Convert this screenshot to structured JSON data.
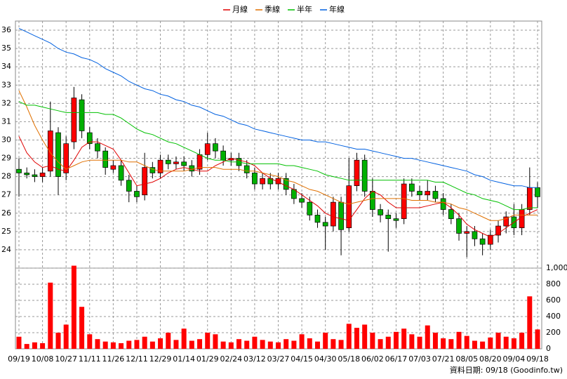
{
  "chart_data": {
    "type": "candlestick",
    "categories": [
      "09/19",
      null,
      null,
      "10/08",
      null,
      null,
      "10/27",
      null,
      null,
      "11/11",
      null,
      null,
      "11/26",
      null,
      null,
      "12/11",
      null,
      null,
      "12/29",
      null,
      null,
      "01/14",
      null,
      null,
      "01/29",
      null,
      null,
      "02/24",
      null,
      null,
      "03/12",
      null,
      null,
      "03/27",
      null,
      null,
      "04/15",
      null,
      null,
      "04/30",
      null,
      null,
      "05/18",
      null,
      null,
      "06/02",
      null,
      null,
      "06/17",
      null,
      null,
      "07/03",
      null,
      null,
      "07/21",
      null,
      null,
      "08/05",
      null,
      null,
      "08/20",
      null,
      null,
      "09/04",
      null,
      null,
      "09/18"
    ],
    "open": [
      28.4,
      28.2,
      28.1,
      28.0,
      28.3,
      30.4,
      28.2,
      29.9,
      32.2,
      30.4,
      29.8,
      29.4,
      28.4,
      28.6,
      27.8,
      27.2,
      27.0,
      28.5,
      28.2,
      28.9,
      28.7,
      28.8,
      28.6,
      28.4,
      29.2,
      29.8,
      29.4,
      28.9,
      29.0,
      28.6,
      28.2,
      27.6,
      27.9,
      27.6,
      27.9,
      27.3,
      26.8,
      26.6,
      25.9,
      25.5,
      25.3,
      26.6,
      25.2,
      27.5,
      28.9,
      27.2,
      26.2,
      25.9,
      25.7,
      25.7,
      27.6,
      27.2,
      27.0,
      27.2,
      26.8,
      26.2,
      25.7,
      24.9,
      25.0,
      24.6,
      24.3,
      24.8,
      25.3,
      25.8,
      25.2,
      26.2,
      27.4
    ],
    "high": [
      29.0,
      28.5,
      28.4,
      28.5,
      32.1,
      30.7,
      30.2,
      32.9,
      32.5,
      30.7,
      30.1,
      29.6,
      28.9,
      28.9,
      28.1,
      27.5,
      29.3,
      28.8,
      29.2,
      29.2,
      29.1,
      29.1,
      28.9,
      29.5,
      30.4,
      30.1,
      29.7,
      29.3,
      29.3,
      28.9,
      28.5,
      28.2,
      28.2,
      28.2,
      28.2,
      27.6,
      27.1,
      26.9,
      26.2,
      25.8,
      26.9,
      26.9,
      29.0,
      29.3,
      29.2,
      27.9,
      26.5,
      26.2,
      26.0,
      27.9,
      27.9,
      27.5,
      27.8,
      27.5,
      27.1,
      26.5,
      26.0,
      25.3,
      25.3,
      24.9,
      25.1,
      25.6,
      26.1,
      26.5,
      26.5,
      28.5,
      27.7
    ],
    "low": [
      26.9,
      27.9,
      27.7,
      27.7,
      28.0,
      27.0,
      27.8,
      29.5,
      30.1,
      29.5,
      29.0,
      28.1,
      28.2,
      27.5,
      26.6,
      26.6,
      26.7,
      27.9,
      27.9,
      28.4,
      28.4,
      28.3,
      28.0,
      28.1,
      28.9,
      29.0,
      28.6,
      28.6,
      28.3,
      27.9,
      27.3,
      27.3,
      27.3,
      27.3,
      27.0,
      26.5,
      26.3,
      25.6,
      25.2,
      24.0,
      25.0,
      23.7,
      25.0,
      27.2,
      26.9,
      25.8,
      25.5,
      23.9,
      25.2,
      25.4,
      26.9,
      26.7,
      26.7,
      26.6,
      25.9,
      25.4,
      24.5,
      23.6,
      24.2,
      23.7,
      24.0,
      24.4,
      24.9,
      24.8,
      24.8,
      25.9,
      26.3
    ],
    "close": [
      28.2,
      28.1,
      28.0,
      28.2,
      30.5,
      28.0,
      29.8,
      32.3,
      30.5,
      29.8,
      29.4,
      28.5,
      28.6,
      27.8,
      27.2,
      26.9,
      28.5,
      28.2,
      28.9,
      28.7,
      28.8,
      28.6,
      28.3,
      29.2,
      29.8,
      29.4,
      28.9,
      29.0,
      28.6,
      28.2,
      27.6,
      27.9,
      27.6,
      27.9,
      27.3,
      26.8,
      26.6,
      25.9,
      25.5,
      25.3,
      26.6,
      25.1,
      27.5,
      28.9,
      27.2,
      26.2,
      25.9,
      25.7,
      25.6,
      27.6,
      27.2,
      27.0,
      27.2,
      26.8,
      26.2,
      25.7,
      24.9,
      25.0,
      24.6,
      24.3,
      24.8,
      25.3,
      25.8,
      25.2,
      26.2,
      27.4,
      26.9
    ],
    "up_color": "#ff0000",
    "down_color": "#00b000",
    "ylim": [
      23,
      36.5
    ],
    "yticks": [
      24,
      25,
      26,
      27,
      28,
      29,
      30,
      31,
      32,
      33,
      34,
      35,
      36
    ],
    "grid": true,
    "series": [
      {
        "name": "月線",
        "color": "#e00000",
        "values": [
          30.2,
          29.3,
          28.8,
          28.5,
          28.6,
          28.4,
          28.3,
          28.9,
          29.6,
          29.9,
          29.9,
          29.7,
          29.5,
          28.9,
          28.2,
          27.5,
          27.6,
          27.7,
          27.9,
          28.2,
          28.4,
          28.5,
          28.4,
          28.3,
          28.3,
          28.6,
          28.8,
          29.0,
          28.9,
          28.8,
          28.6,
          28.2,
          27.9,
          27.7,
          27.5,
          27.3,
          27.0,
          26.7,
          26.4,
          26.0,
          25.8,
          25.7,
          25.6,
          26.2,
          26.8,
          27.2,
          27.0,
          26.6,
          26.3,
          26.3,
          26.3,
          26.3,
          26.4,
          26.5,
          26.6,
          26.3,
          25.9,
          25.4,
          25.1,
          24.9,
          24.7,
          24.9,
          25.2,
          25.5,
          25.8,
          26.0,
          26.2
        ]
      },
      {
        "name": "季線",
        "color": "#e07000",
        "values": [
          32.7,
          31.8,
          30.8,
          30.0,
          29.3,
          28.8,
          28.4,
          28.6,
          28.8,
          28.9,
          28.9,
          28.9,
          28.9,
          28.9,
          28.8,
          28.8,
          28.6,
          28.4,
          28.3,
          28.3,
          28.3,
          28.3,
          28.4,
          28.5,
          28.5,
          28.5,
          28.4,
          28.4,
          28.4,
          28.3,
          28.3,
          28.2,
          28.1,
          28.0,
          27.8,
          27.7,
          27.5,
          27.3,
          27.2,
          27.0,
          26.8,
          26.6,
          26.5,
          26.6,
          26.7,
          26.8,
          26.8,
          26.8,
          26.8,
          26.8,
          26.7,
          26.7,
          26.7,
          26.6,
          26.6,
          26.5,
          26.3,
          26.2,
          26.0,
          25.8,
          25.6,
          25.6,
          25.7,
          25.9,
          25.9,
          25.9,
          25.9
        ]
      },
      {
        "name": "半年",
        "color": "#00c000",
        "values": [
          32.1,
          31.9,
          31.9,
          31.8,
          31.7,
          31.6,
          31.5,
          31.5,
          31.5,
          31.5,
          31.5,
          31.4,
          31.4,
          31.2,
          30.9,
          30.6,
          30.4,
          30.3,
          30.1,
          29.9,
          29.8,
          29.6,
          29.4,
          29.2,
          29.0,
          28.9,
          28.9,
          28.8,
          28.8,
          28.7,
          28.7,
          28.7,
          28.7,
          28.7,
          28.6,
          28.6,
          28.5,
          28.4,
          28.3,
          28.1,
          28.0,
          27.9,
          27.8,
          27.8,
          27.8,
          27.8,
          27.8,
          27.8,
          27.8,
          27.8,
          27.8,
          27.8,
          27.8,
          27.7,
          27.7,
          27.5,
          27.3,
          27.1,
          27.0,
          26.8,
          26.7,
          26.6,
          26.4,
          26.2,
          26.2,
          26.3,
          26.3
        ]
      },
      {
        "name": "年線",
        "color": "#0060e0",
        "values": [
          36.1,
          35.9,
          35.7,
          35.5,
          35.3,
          35.0,
          34.8,
          34.7,
          34.5,
          34.4,
          34.2,
          33.9,
          33.7,
          33.5,
          33.2,
          33.0,
          32.8,
          32.7,
          32.5,
          32.4,
          32.2,
          32.1,
          31.9,
          31.8,
          31.6,
          31.4,
          31.3,
          31.1,
          30.9,
          30.8,
          30.6,
          30.5,
          30.4,
          30.3,
          30.2,
          30.1,
          30.0,
          30.0,
          29.9,
          29.9,
          29.8,
          29.7,
          29.6,
          29.5,
          29.5,
          29.4,
          29.3,
          29.2,
          29.1,
          29.0,
          29.0,
          28.9,
          28.8,
          28.7,
          28.6,
          28.5,
          28.4,
          28.3,
          28.1,
          28.0,
          27.8,
          27.7,
          27.6,
          27.5,
          27.5,
          27.4,
          27.4
        ]
      }
    ],
    "volume": {
      "color": "#ff0000",
      "ylim": [
        0,
        1000
      ],
      "yticks": [
        0,
        200,
        400,
        600,
        800,
        {
          "value": 1000,
          "label": "1,000"
        }
      ],
      "values": [
        150,
        60,
        80,
        70,
        820,
        200,
        300,
        1030,
        520,
        180,
        120,
        90,
        80,
        70,
        100,
        110,
        150,
        90,
        130,
        200,
        110,
        250,
        100,
        120,
        200,
        180,
        90,
        80,
        120,
        100,
        150,
        110,
        90,
        80,
        120,
        100,
        180,
        130,
        90,
        200,
        120,
        110,
        310,
        260,
        300,
        200,
        120,
        150,
        210,
        250,
        180,
        150,
        290,
        200,
        130,
        120,
        210,
        160,
        100,
        90,
        140,
        200,
        150,
        130,
        200,
        650,
        240
      ]
    },
    "footer": "資料日期: 09/18 (Goodinfo.tw)"
  }
}
